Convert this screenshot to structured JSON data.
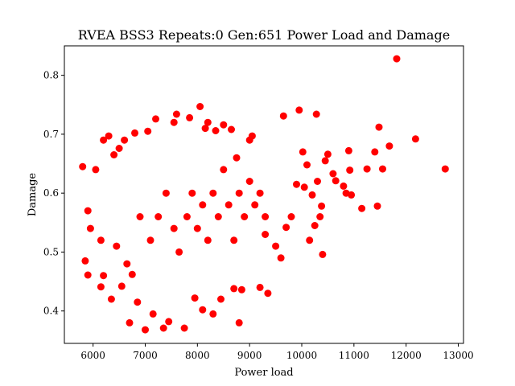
{
  "chart_data": {
    "type": "scatter",
    "title": "RVEA BSS3 Repeats:0 Gen:651 Power Load and Damage",
    "xlabel": "Power load",
    "ylabel": "Damage",
    "xlim": [
      5450,
      13100
    ],
    "ylim": [
      0.345,
      0.85
    ],
    "xticks": [
      6000,
      7000,
      8000,
      9000,
      10000,
      11000,
      12000,
      13000
    ],
    "yticks": [
      0.4,
      0.5,
      0.6,
      0.7,
      0.8
    ],
    "xtick_labels": [
      "6000",
      "7000",
      "8000",
      "9000",
      "10000",
      "11000",
      "12000",
      "13000"
    ],
    "ytick_labels": [
      "0.4",
      "0.5",
      "0.6",
      "0.7",
      "0.8"
    ],
    "grid": false,
    "marker_color": "#ff0000",
    "points": [
      [
        11820,
        0.828
      ],
      [
        12750,
        0.641
      ],
      [
        12180,
        0.692
      ],
      [
        11680,
        0.68
      ],
      [
        11480,
        0.712
      ],
      [
        11400,
        0.67
      ],
      [
        11550,
        0.641
      ],
      [
        11450,
        0.578
      ],
      [
        11150,
        0.574
      ],
      [
        11250,
        0.641
      ],
      [
        10900,
        0.672
      ],
      [
        10920,
        0.639
      ],
      [
        10950,
        0.597
      ],
      [
        10800,
        0.612
      ],
      [
        10850,
        0.6
      ],
      [
        10650,
        0.621
      ],
      [
        10600,
        0.633
      ],
      [
        10500,
        0.666
      ],
      [
        10450,
        0.655
      ],
      [
        10380,
        0.578
      ],
      [
        10400,
        0.496
      ],
      [
        10280,
        0.734
      ],
      [
        9950,
        0.741
      ],
      [
        9650,
        0.731
      ],
      [
        10250,
        0.545
      ],
      [
        10100,
        0.648
      ],
      [
        10020,
        0.67
      ],
      [
        10200,
        0.597
      ],
      [
        10300,
        0.62
      ],
      [
        10050,
        0.61
      ],
      [
        9900,
        0.615
      ],
      [
        9800,
        0.56
      ],
      [
        9700,
        0.542
      ],
      [
        9500,
        0.51
      ],
      [
        9350,
        0.43
      ],
      [
        9200,
        0.44
      ],
      [
        9300,
        0.53
      ],
      [
        9600,
        0.49
      ],
      [
        10150,
        0.52
      ],
      [
        10350,
        0.56
      ],
      [
        6200,
        0.69
      ],
      [
        6300,
        0.697
      ],
      [
        6400,
        0.665
      ],
      [
        6500,
        0.676
      ],
      [
        6600,
        0.69
      ],
      [
        6800,
        0.702
      ],
      [
        7050,
        0.705
      ],
      [
        7200,
        0.726
      ],
      [
        7550,
        0.72
      ],
      [
        7600,
        0.734
      ],
      [
        7850,
        0.728
      ],
      [
        8050,
        0.747
      ],
      [
        8150,
        0.71
      ],
      [
        8350,
        0.706
      ],
      [
        8500,
        0.716
      ],
      [
        8650,
        0.708
      ],
      [
        9000,
        0.69
      ],
      [
        9050,
        0.697
      ],
      [
        8750,
        0.66
      ],
      [
        8200,
        0.72
      ],
      [
        5800,
        0.645
      ],
      [
        5900,
        0.57
      ],
      [
        5950,
        0.54
      ],
      [
        5850,
        0.485
      ],
      [
        5900,
        0.461
      ],
      [
        6050,
        0.64
      ],
      [
        6150,
        0.52
      ],
      [
        6200,
        0.46
      ],
      [
        6150,
        0.441
      ],
      [
        6350,
        0.42
      ],
      [
        6450,
        0.51
      ],
      [
        6550,
        0.442
      ],
      [
        6650,
        0.48
      ],
      [
        6700,
        0.38
      ],
      [
        6850,
        0.415
      ],
      [
        7000,
        0.368
      ],
      [
        7150,
        0.395
      ],
      [
        7350,
        0.371
      ],
      [
        7450,
        0.382
      ],
      [
        7750,
        0.371
      ],
      [
        7950,
        0.422
      ],
      [
        8100,
        0.402
      ],
      [
        8300,
        0.395
      ],
      [
        8450,
        0.42
      ],
      [
        8800,
        0.38
      ],
      [
        8700,
        0.438
      ],
      [
        8850,
        0.436
      ],
      [
        6750,
        0.462
      ],
      [
        6900,
        0.56
      ],
      [
        7100,
        0.52
      ],
      [
        7250,
        0.56
      ],
      [
        7400,
        0.6
      ],
      [
        7550,
        0.54
      ],
      [
        7650,
        0.5
      ],
      [
        7800,
        0.56
      ],
      [
        7900,
        0.6
      ],
      [
        8000,
        0.54
      ],
      [
        8100,
        0.58
      ],
      [
        8200,
        0.52
      ],
      [
        8300,
        0.6
      ],
      [
        8400,
        0.56
      ],
      [
        8500,
        0.64
      ],
      [
        8600,
        0.58
      ],
      [
        8700,
        0.52
      ],
      [
        8800,
        0.6
      ],
      [
        8900,
        0.56
      ],
      [
        9000,
        0.62
      ],
      [
        9100,
        0.58
      ],
      [
        9200,
        0.6
      ],
      [
        9300,
        0.56
      ]
    ]
  }
}
